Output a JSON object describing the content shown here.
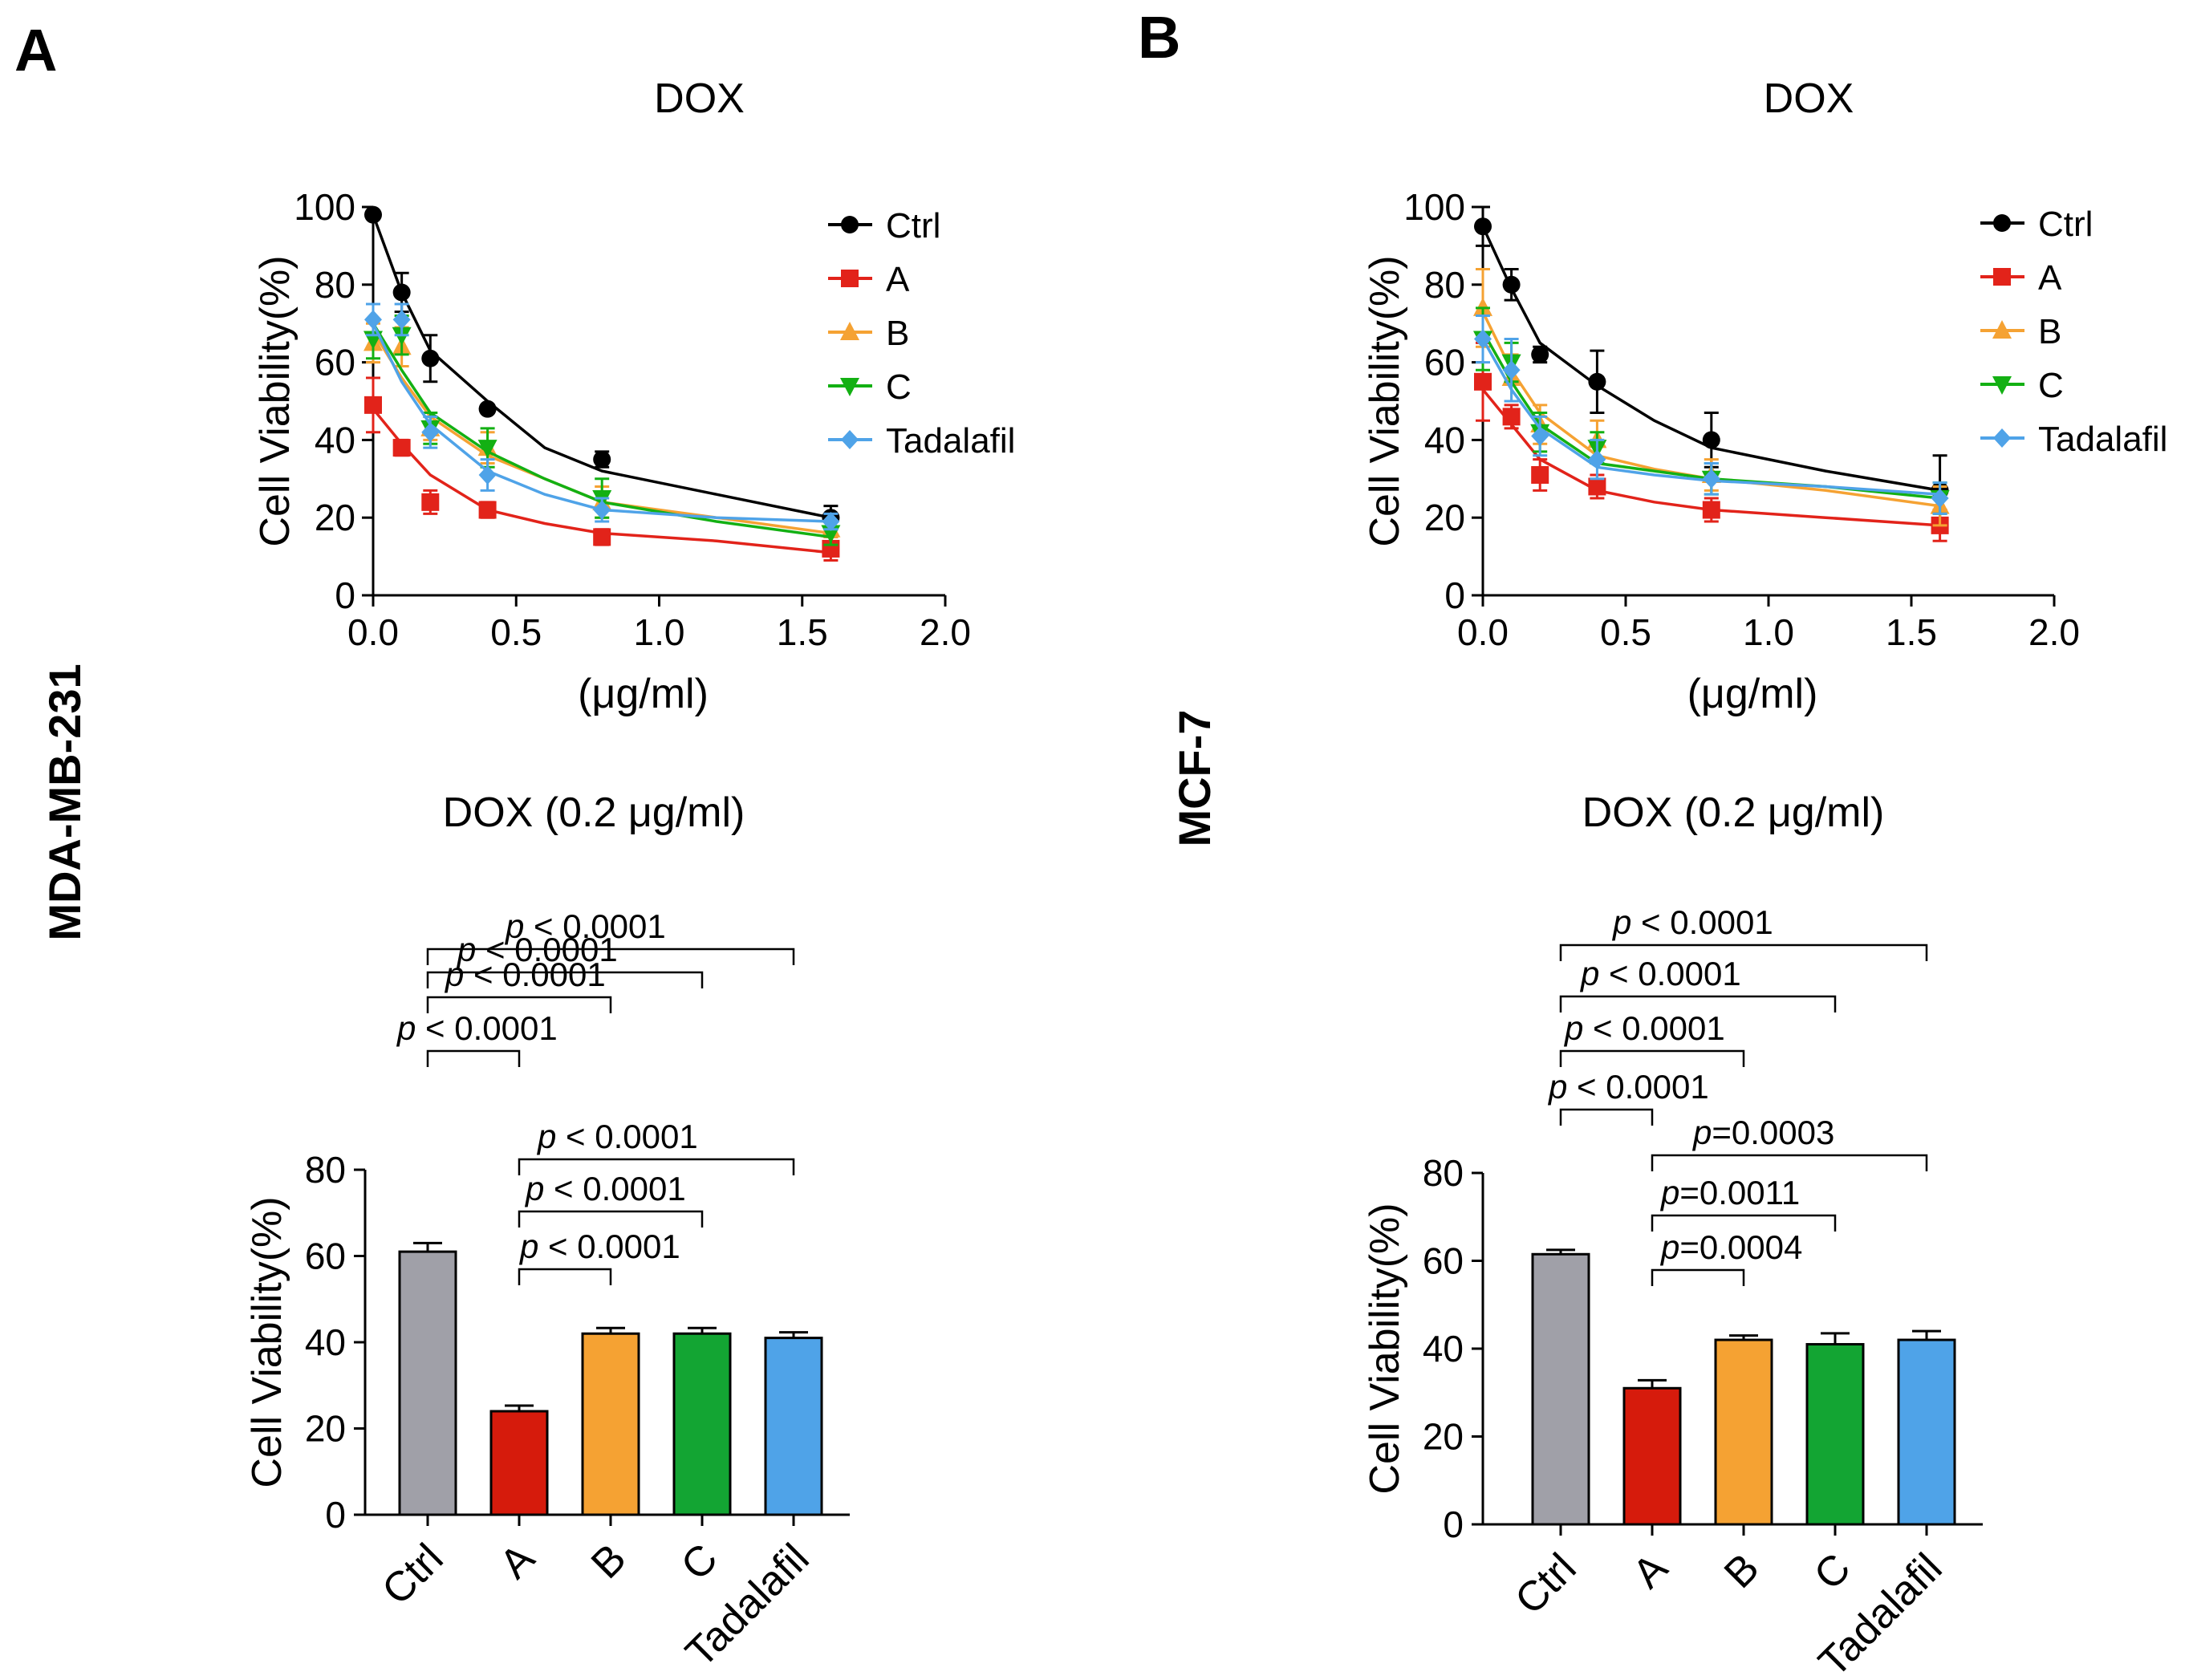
{
  "panels": [
    {
      "label": "A",
      "cell_line": "MDA-MB-231"
    },
    {
      "label": "B",
      "cell_line": "MCF-7"
    }
  ],
  "chart_data": [
    {
      "panel": "A",
      "type": "line",
      "title": "DOX",
      "xlabel": "(μg/ml)",
      "ylabel": "Cell Viability(%)",
      "xlim": [
        0,
        2.0
      ],
      "ylim": [
        0,
        100
      ],
      "xticks": [
        "0.0",
        "0.5",
        "1.0",
        "1.5",
        "2.0"
      ],
      "yticks": [
        "0",
        "20",
        "40",
        "60",
        "80",
        "100"
      ],
      "x": [
        0.0,
        0.1,
        0.2,
        0.4,
        0.8,
        1.6
      ],
      "series": [
        {
          "name": "Ctrl",
          "color": "#000000",
          "marker": "circle",
          "values": [
            98,
            78,
            61,
            48,
            35,
            20
          ],
          "errors": [
            1,
            5,
            6,
            1,
            2,
            3
          ],
          "fit": [
            98,
            78,
            63,
            50,
            38,
            32,
            26,
            20
          ]
        },
        {
          "name": "A",
          "color": "#e2231a",
          "marker": "square",
          "values": [
            49,
            38,
            24,
            22,
            15,
            12
          ],
          "errors": [
            7,
            2,
            3,
            2,
            2,
            3
          ],
          "fit": [
            48,
            39,
            31,
            22,
            18.5,
            16,
            14,
            11
          ]
        },
        {
          "name": "B",
          "color": "#f5a233",
          "marker": "triangle-up",
          "values": [
            65,
            64,
            43,
            38,
            24,
            17
          ],
          "errors": [
            5,
            5,
            3,
            4,
            4,
            2
          ],
          "fit": [
            68,
            56,
            46,
            36,
            30,
            24,
            20,
            16
          ]
        },
        {
          "name": "C",
          "color": "#13b013",
          "marker": "triangle-down",
          "values": [
            66,
            67,
            43,
            38,
            25,
            16
          ],
          "errors": [
            5,
            5,
            4,
            5,
            5,
            3
          ],
          "fit": [
            70,
            58,
            47,
            37,
            30,
            24,
            19,
            15
          ]
        },
        {
          "name": "Tadalafil",
          "color": "#4fa3e8",
          "marker": "diamond",
          "values": [
            71,
            71,
            42,
            31,
            22,
            19
          ],
          "errors": [
            4,
            4,
            4,
            4,
            3,
            2
          ],
          "fit": [
            70,
            55,
            44,
            32,
            26,
            22,
            20,
            19
          ]
        }
      ]
    },
    {
      "panel": "B",
      "type": "line",
      "title": "DOX",
      "xlabel": "(μg/ml)",
      "ylabel": "Cell Viability(%)",
      "xlim": [
        0,
        2.0
      ],
      "ylim": [
        0,
        100
      ],
      "xticks": [
        "0.0",
        "0.5",
        "1.0",
        "1.5",
        "2.0"
      ],
      "yticks": [
        "0",
        "20",
        "40",
        "60",
        "80",
        "100"
      ],
      "x": [
        0.0,
        0.1,
        0.2,
        0.4,
        0.8,
        1.6
      ],
      "series": [
        {
          "name": "Ctrl",
          "color": "#000000",
          "marker": "circle",
          "values": [
            95,
            80,
            62,
            55,
            40,
            27
          ],
          "errors": [
            5,
            4,
            2,
            8,
            7,
            9
          ],
          "fit": [
            95,
            79,
            65,
            54,
            45,
            38,
            32,
            27
          ]
        },
        {
          "name": "A",
          "color": "#e2231a",
          "marker": "square",
          "values": [
            55,
            46,
            31,
            28,
            22,
            18
          ],
          "errors": [
            10,
            3,
            4,
            3,
            3,
            4
          ],
          "fit": [
            53,
            44,
            35,
            27,
            24,
            22,
            20,
            18
          ]
        },
        {
          "name": "B",
          "color": "#f5a233",
          "marker": "triangle-up",
          "values": [
            74,
            56,
            44,
            40,
            31,
            23
          ],
          "errors": [
            10,
            6,
            5,
            5,
            4,
            5
          ],
          "fit": [
            73,
            58,
            47,
            36,
            32.5,
            30,
            27,
            23
          ]
        },
        {
          "name": "C",
          "color": "#13b013",
          "marker": "triangle-down",
          "values": [
            66,
            60,
            42,
            38,
            30,
            25
          ],
          "errors": [
            8,
            5,
            5,
            4,
            4,
            4
          ],
          "fit": [
            68,
            55,
            44,
            34,
            32,
            30,
            28,
            25
          ]
        },
        {
          "name": "Tadalafil",
          "color": "#4fa3e8",
          "marker": "diamond",
          "values": [
            66,
            58,
            41,
            35,
            30,
            25
          ],
          "errors": [
            6,
            8,
            5,
            5,
            4,
            4
          ],
          "fit": [
            66,
            53,
            43,
            33,
            31,
            29.5,
            28,
            26
          ]
        }
      ]
    },
    {
      "panel": "A",
      "type": "bar",
      "title": "DOX  (0.2 μg/ml)",
      "ylabel": "Cell Viability(%)",
      "ylim": [
        0,
        80
      ],
      "yticks": [
        "0",
        "20",
        "40",
        "60",
        "80"
      ],
      "categories": [
        "Ctrl",
        "A",
        "B",
        "C",
        "Tadalafil"
      ],
      "colors": [
        "#a0a0a8",
        "#d61b0c",
        "#f5a233",
        "#13a533",
        "#4fa3e8"
      ],
      "values": [
        61,
        24,
        42,
        42,
        41
      ],
      "errors": [
        2,
        1.3,
        1.3,
        1.3,
        1.3
      ],
      "comparisons": [
        {
          "from": 0,
          "to": 4,
          "label_italic": "p",
          "label_rest": " < 0.0001"
        },
        {
          "from": 0,
          "to": 3,
          "label_italic": "p",
          "label_rest": " < 0.0001"
        },
        {
          "from": 0,
          "to": 2,
          "label_italic": "p",
          "label_rest": " < 0.0001"
        },
        {
          "from": 0,
          "to": 1,
          "label_italic": "p",
          "label_rest": " < 0.0001"
        },
        {
          "from": 1,
          "to": 4,
          "label_italic": "p",
          "label_rest": " < 0.0001"
        },
        {
          "from": 1,
          "to": 3,
          "label_italic": "p",
          "label_rest": " < 0.0001"
        },
        {
          "from": 1,
          "to": 2,
          "label_italic": "p",
          "label_rest": " < 0.0001"
        }
      ]
    },
    {
      "panel": "B",
      "type": "bar",
      "title": "DOX  (0.2 μg/ml)",
      "ylabel": "Cell Viability(%)",
      "ylim": [
        0,
        80
      ],
      "yticks": [
        "0",
        "20",
        "40",
        "60",
        "80"
      ],
      "categories": [
        "Ctrl",
        "A",
        "B",
        "C",
        "Tadalafil"
      ],
      "colors": [
        "#a0a0a8",
        "#d61b0c",
        "#f5a233",
        "#13a533",
        "#4fa3e8"
      ],
      "values": [
        61.5,
        31,
        42,
        41,
        42
      ],
      "errors": [
        1,
        1.8,
        1,
        2.5,
        2
      ],
      "comparisons": [
        {
          "from": 0,
          "to": 4,
          "label_italic": "p",
          "label_rest": " < 0.0001"
        },
        {
          "from": 0,
          "to": 3,
          "label_italic": "p",
          "label_rest": " < 0.0001"
        },
        {
          "from": 0,
          "to": 2,
          "label_italic": "p",
          "label_rest": " < 0.0001"
        },
        {
          "from": 0,
          "to": 1,
          "label_italic": "p",
          "label_rest": " < 0.0001"
        },
        {
          "from": 1,
          "to": 4,
          "label_italic": "p",
          "label_rest": "=0.0003"
        },
        {
          "from": 1,
          "to": 3,
          "label_italic": "p",
          "label_rest": "=0.0011"
        },
        {
          "from": 1,
          "to": 2,
          "label_italic": "p",
          "label_rest": "=0.0004"
        }
      ]
    }
  ]
}
